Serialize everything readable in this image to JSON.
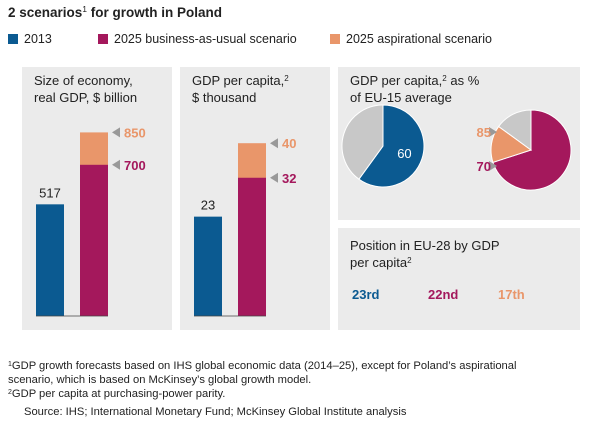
{
  "header": {
    "title": "2 scenarios",
    "title_sup": "1",
    "title_rest": " for growth in Poland"
  },
  "legend": [
    {
      "name": "2013",
      "color": "#0b5a91"
    },
    {
      "name": "2025 business-as-usual scenario",
      "color": "#a4185c"
    },
    {
      "name": "2025 aspirational scenario",
      "color": "#e9966a"
    }
  ],
  "chart_data": [
    {
      "type": "bar",
      "title": [
        [
          {
            "text": "Size of economy,"
          }
        ],
        [
          {
            "text": "real GDP, $ billion"
          }
        ]
      ],
      "values": [
        517,
        700,
        850
      ],
      "ylim": [
        0,
        1000
      ]
    },
    {
      "type": "bar",
      "title": [
        [
          {
            "text": "GDP per capita,"
          },
          {
            "sup": "2"
          }
        ],
        [
          {
            "text": "$ thousand"
          }
        ]
      ],
      "values": [
        23,
        32,
        40
      ],
      "ylim": [
        0,
        50
      ]
    },
    {
      "type": "pie",
      "title": [
        [
          {
            "text": "GDP per capita,"
          },
          {
            "sup": "2"
          },
          {
            "text": " as %"
          }
        ],
        [
          {
            "text": "of EU-15 average"
          }
        ]
      ],
      "remainder_color": "#c8c8c8",
      "pies": [
        {
          "values": [
            60
          ]
        },
        {
          "values": [
            70,
            85
          ]
        }
      ]
    },
    {
      "type": "rank",
      "title": [
        [
          {
            "text": "Position in EU-28 by GDP"
          }
        ],
        [
          {
            "text": "per capita"
          },
          {
            "sup": "2"
          }
        ]
      ],
      "values": [
        "23rd",
        "22nd",
        "17th"
      ]
    }
  ],
  "footnotes": [
    {
      "sup": "1",
      "lines": [
        "GDP growth forecasts based on IHS global economic data (2014–25), except for Poland’s aspirational",
        "scenario, which is based on McKinsey’s global growth model."
      ]
    },
    {
      "sup": "2",
      "lines": [
        "GDP per capita at purchasing-power parity."
      ]
    }
  ],
  "source": "Source: IHS; International Monetary Fund; McKinsey Global Institute analysis"
}
